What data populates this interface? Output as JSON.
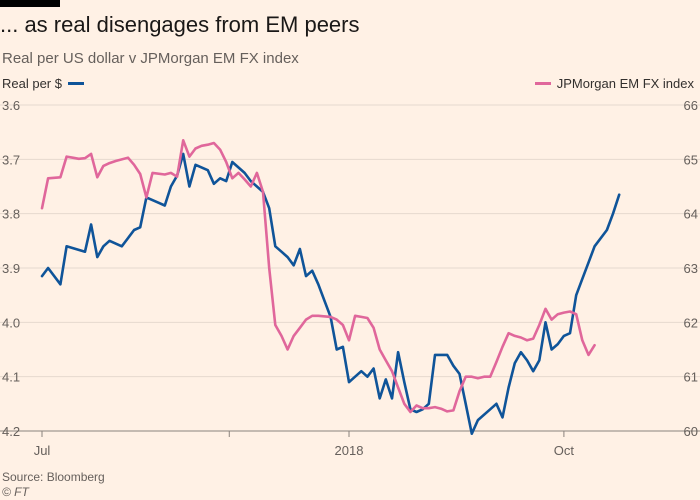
{
  "title": "... as real disengages from EM peers",
  "subtitle": "Real per US dollar v JPMorgan EM FX index",
  "source": "Source: Bloomberg",
  "credit": "© FT",
  "colors": {
    "background": "#fff1e5",
    "real": "#0f5499",
    "em": "#e0679b",
    "grid": "#e6d9ce"
  },
  "chart_data": {
    "type": "line",
    "x_tick_labels": [
      "Jul",
      "2018",
      "Oct"
    ],
    "left_axis": {
      "label": "Real per $",
      "inverted": true,
      "ylim": [
        3.6,
        4.2
      ],
      "tick_labels": [
        "3.6",
        "3.7",
        "3.8",
        "3.9",
        "4.0",
        "4.1",
        "4.2"
      ]
    },
    "right_axis": {
      "label": "JPMorgan EM FX index",
      "ylim": [
        60,
        66
      ],
      "tick_labels": [
        "66",
        "65",
        "64",
        "63",
        "62",
        "61",
        "60"
      ]
    },
    "grid": true,
    "series": [
      {
        "name": "Real per $",
        "axis": "left",
        "values": [
          [
            0,
            3.915
          ],
          [
            0.01,
            3.9
          ],
          [
            0.03,
            3.93
          ],
          [
            0.04,
            3.86
          ],
          [
            0.07,
            3.87
          ],
          [
            0.08,
            3.82
          ],
          [
            0.09,
            3.88
          ],
          [
            0.1,
            3.86
          ],
          [
            0.11,
            3.85
          ],
          [
            0.13,
            3.86
          ],
          [
            0.14,
            3.845
          ],
          [
            0.15,
            3.83
          ],
          [
            0.16,
            3.825
          ],
          [
            0.17,
            3.77
          ],
          [
            0.19,
            3.78
          ],
          [
            0.2,
            3.785
          ],
          [
            0.21,
            3.75
          ],
          [
            0.22,
            3.73
          ],
          [
            0.23,
            3.69
          ],
          [
            0.24,
            3.75
          ],
          [
            0.25,
            3.71
          ],
          [
            0.27,
            3.72
          ],
          [
            0.28,
            3.745
          ],
          [
            0.29,
            3.735
          ],
          [
            0.3,
            3.74
          ],
          [
            0.31,
            3.705
          ],
          [
            0.33,
            3.725
          ],
          [
            0.34,
            3.74
          ],
          [
            0.35,
            3.75
          ],
          [
            0.36,
            3.76
          ],
          [
            0.37,
            3.79
          ],
          [
            0.38,
            3.86
          ],
          [
            0.39,
            3.87
          ],
          [
            0.4,
            3.88
          ],
          [
            0.41,
            3.895
          ],
          [
            0.42,
            3.865
          ],
          [
            0.43,
            3.915
          ],
          [
            0.44,
            3.905
          ],
          [
            0.45,
            3.93
          ],
          [
            0.46,
            3.96
          ],
          [
            0.47,
            3.99
          ],
          [
            0.48,
            4.05
          ],
          [
            0.49,
            4.045
          ],
          [
            0.5,
            4.11
          ],
          [
            0.51,
            4.1
          ],
          [
            0.52,
            4.09
          ],
          [
            0.53,
            4.1
          ],
          [
            0.54,
            4.085
          ],
          [
            0.55,
            4.14
          ],
          [
            0.56,
            4.105
          ],
          [
            0.57,
            4.14
          ],
          [
            0.58,
            4.055
          ],
          [
            0.59,
            4.11
          ],
          [
            0.6,
            4.16
          ],
          [
            0.61,
            4.165
          ],
          [
            0.62,
            4.16
          ],
          [
            0.63,
            4.15
          ],
          [
            0.64,
            4.06
          ],
          [
            0.66,
            4.06
          ],
          [
            0.67,
            4.08
          ],
          [
            0.68,
            4.095
          ],
          [
            0.69,
            4.15
          ],
          [
            0.7,
            4.205
          ],
          [
            0.71,
            4.18
          ],
          [
            0.73,
            4.16
          ],
          [
            0.74,
            4.15
          ],
          [
            0.75,
            4.175
          ],
          [
            0.76,
            4.12
          ],
          [
            0.77,
            4.075
          ],
          [
            0.78,
            4.055
          ],
          [
            0.79,
            4.07
          ],
          [
            0.8,
            4.09
          ],
          [
            0.81,
            4.07
          ],
          [
            0.82,
            4.0
          ],
          [
            0.83,
            4.05
          ],
          [
            0.84,
            4.04
          ],
          [
            0.85,
            4.025
          ],
          [
            0.86,
            4.02
          ],
          [
            0.87,
            3.95
          ],
          [
            0.88,
            3.92
          ],
          [
            0.89,
            3.89
          ],
          [
            0.9,
            3.86
          ],
          [
            0.92,
            3.83
          ],
          [
            0.93,
            3.8
          ],
          [
            0.94,
            3.765
          ]
        ]
      },
      {
        "name": "JPMorgan EM FX index",
        "axis": "right",
        "values": [
          [
            0,
            64.1
          ],
          [
            0.01,
            64.65
          ],
          [
            0.03,
            64.67
          ],
          [
            0.04,
            65.05
          ],
          [
            0.05,
            65.03
          ],
          [
            0.06,
            65.01
          ],
          [
            0.07,
            65.02
          ],
          [
            0.08,
            65.1
          ],
          [
            0.09,
            64.67
          ],
          [
            0.1,
            64.88
          ],
          [
            0.11,
            64.93
          ],
          [
            0.12,
            64.97
          ],
          [
            0.14,
            65.03
          ],
          [
            0.15,
            64.9
          ],
          [
            0.16,
            64.73
          ],
          [
            0.17,
            64.3
          ],
          [
            0.18,
            64.75
          ],
          [
            0.2,
            64.72
          ],
          [
            0.21,
            64.75
          ],
          [
            0.22,
            64.68
          ],
          [
            0.23,
            65.35
          ],
          [
            0.24,
            65.05
          ],
          [
            0.25,
            65.2
          ],
          [
            0.26,
            65.25
          ],
          [
            0.27,
            65.27
          ],
          [
            0.28,
            65.3
          ],
          [
            0.29,
            65.18
          ],
          [
            0.3,
            64.95
          ],
          [
            0.31,
            64.65
          ],
          [
            0.32,
            64.75
          ],
          [
            0.33,
            64.63
          ],
          [
            0.34,
            64.5
          ],
          [
            0.35,
            64.75
          ],
          [
            0.36,
            64.4
          ],
          [
            0.37,
            63.0
          ],
          [
            0.38,
            61.95
          ],
          [
            0.39,
            61.75
          ],
          [
            0.4,
            61.5
          ],
          [
            0.41,
            61.75
          ],
          [
            0.42,
            61.9
          ],
          [
            0.43,
            62.05
          ],
          [
            0.44,
            62.12
          ],
          [
            0.45,
            62.12
          ],
          [
            0.47,
            62.1
          ],
          [
            0.48,
            62.05
          ],
          [
            0.49,
            61.95
          ],
          [
            0.5,
            61.67
          ],
          [
            0.51,
            62.12
          ],
          [
            0.52,
            62.1
          ],
          [
            0.53,
            62.08
          ],
          [
            0.54,
            61.9
          ],
          [
            0.55,
            61.5
          ],
          [
            0.56,
            61.3
          ],
          [
            0.57,
            61.1
          ],
          [
            0.58,
            60.8
          ],
          [
            0.59,
            60.5
          ],
          [
            0.6,
            60.35
          ],
          [
            0.61,
            60.47
          ],
          [
            0.62,
            60.42
          ],
          [
            0.63,
            60.42
          ],
          [
            0.64,
            60.44
          ],
          [
            0.65,
            60.41
          ],
          [
            0.66,
            60.36
          ],
          [
            0.67,
            60.38
          ],
          [
            0.68,
            60.73
          ],
          [
            0.69,
            61.0
          ],
          [
            0.7,
            61.0
          ],
          [
            0.71,
            60.97
          ],
          [
            0.72,
            61.0
          ],
          [
            0.73,
            61.0
          ],
          [
            0.74,
            61.27
          ],
          [
            0.75,
            61.55
          ],
          [
            0.76,
            61.8
          ],
          [
            0.77,
            61.75
          ],
          [
            0.78,
            61.72
          ],
          [
            0.79,
            61.67
          ],
          [
            0.8,
            61.7
          ],
          [
            0.81,
            61.95
          ],
          [
            0.82,
            62.25
          ],
          [
            0.83,
            62.05
          ],
          [
            0.84,
            62.15
          ],
          [
            0.85,
            62.18
          ],
          [
            0.86,
            62.2
          ],
          [
            0.87,
            62.15
          ],
          [
            0.88,
            61.67
          ],
          [
            0.89,
            61.4
          ],
          [
            0.9,
            61.58
          ]
        ]
      }
    ]
  }
}
